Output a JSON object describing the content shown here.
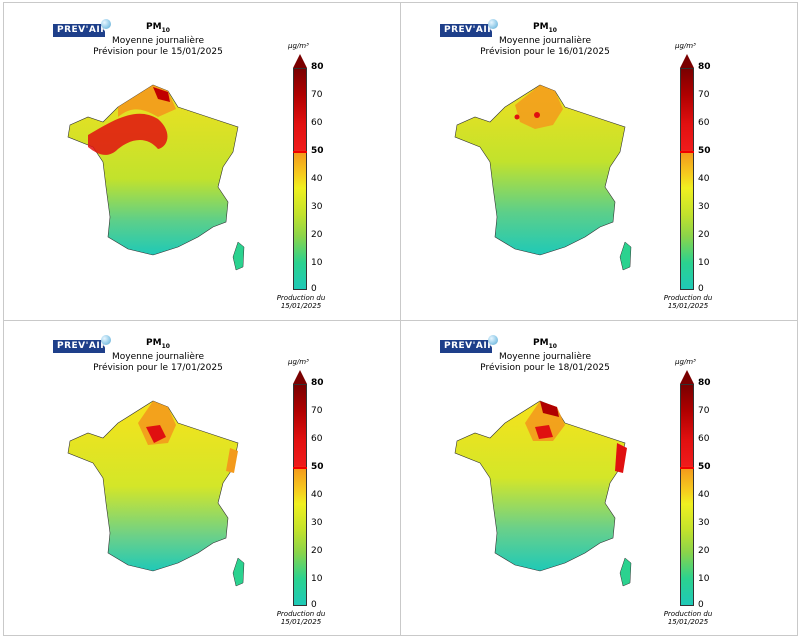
{
  "logo_text": "PREV'AIR",
  "colorbar": {
    "unit": "µg/m³",
    "ticks": [
      "80",
      "70",
      "60",
      "50",
      "40",
      "30",
      "20",
      "10",
      "0"
    ],
    "colors": [
      "#1fc9b7",
      "#8bd44a",
      "#f0f020",
      "#f39a1c",
      "#ef1b1b",
      "#7a0000"
    ]
  },
  "panels": [
    {
      "pollutant": "PM",
      "pollutant_sub": "10",
      "subtitle": "Moyenne journalière",
      "forecast": "Prévision pour le 15/01/2025",
      "production_line1": "Production du",
      "production_line2": "15/01/2025"
    },
    {
      "pollutant": "PM",
      "pollutant_sub": "10",
      "subtitle": "Moyenne journalière",
      "forecast": "Prévision pour le 16/01/2025",
      "production_line1": "Production du",
      "production_line2": "15/01/2025"
    },
    {
      "pollutant": "PM",
      "pollutant_sub": "10",
      "subtitle": "Moyenne journalière",
      "forecast": "Prévision pour le 17/01/2025",
      "production_line1": "Production du",
      "production_line2": "15/01/2025"
    },
    {
      "pollutant": "PM",
      "pollutant_sub": "10",
      "subtitle": "Moyenne journalière",
      "forecast": "Prévision pour le 18/01/2025",
      "production_line1": "Production du",
      "production_line2": "15/01/2025"
    }
  ]
}
